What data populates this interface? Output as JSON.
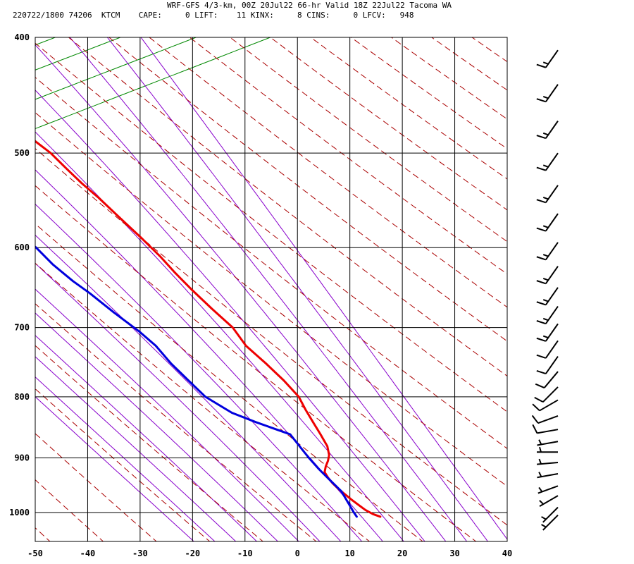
{
  "header": {
    "title": "WRF-GFS 4/3-km, 00Z 20Jul22 66-hr Valid 18Z 22Jul22 Tacoma WA",
    "stats": "220722/1800 74206  KTCM    CAPE:     0 LIFT:    11 KINX:     8 CINS:     0 LFCV:   948"
  },
  "colors": {
    "temperature": "#ee0000",
    "dewpoint": "#0000dd",
    "dry_adiabat": "#aa0000",
    "moist_adiabat": "#8800cc",
    "mixing_ratio": "#008800",
    "grid": "#000000"
  },
  "chart_data": {
    "type": "line",
    "subtype": "skew-T log-p sounding",
    "title": "WRF-GFS 4/3-km, 00Z 20Jul22 66-hr Valid 18Z 22Jul22 Tacoma WA",
    "xlabel": "",
    "ylabel": "",
    "x_ticks": [
      -50,
      -40,
      -30,
      -20,
      -10,
      0,
      10,
      20,
      30,
      40
    ],
    "x_tick_labels": [
      "-50",
      "-40",
      "-30",
      "-20",
      "-10",
      "0",
      "10",
      "20",
      "30",
      "40"
    ],
    "y_ticks": [
      400,
      500,
      600,
      700,
      800,
      900,
      1000
    ],
    "y_tick_labels": [
      "400",
      "500",
      "600",
      "700",
      "800",
      "900",
      "1000"
    ],
    "xlim": [
      -50,
      40
    ],
    "ylim": [
      1050,
      400
    ],
    "y_scale": "log (pressure, hPa)",
    "grid": true,
    "legend": "none",
    "series": [
      {
        "points": [
          [
            15.5,
            1008
          ],
          [
            14.3,
            1003
          ],
          [
            13.2,
            995
          ],
          [
            12.3,
            985
          ],
          [
            11.4,
            975
          ],
          [
            10.6,
            965
          ],
          [
            9.8,
            955
          ],
          [
            9.2,
            945
          ],
          [
            8.8,
            935
          ],
          [
            8.6,
            925
          ],
          [
            9.3,
            915
          ],
          [
            10.2,
            905
          ],
          [
            10.9,
            895
          ],
          [
            11.3,
            880
          ],
          [
            11.0,
            860
          ],
          [
            10.6,
            840
          ],
          [
            10.2,
            820
          ],
          [
            10.0,
            800
          ],
          [
            8.5,
            775
          ],
          [
            6.5,
            750
          ],
          [
            4.2,
            725
          ],
          [
            3.2,
            700
          ],
          [
            0.8,
            675
          ],
          [
            -1.5,
            650
          ],
          [
            -3.2,
            630
          ],
          [
            -4.7,
            610
          ],
          [
            -6.6,
            590
          ],
          [
            -9.3,
            565
          ],
          [
            -11.5,
            545
          ],
          [
            -13.5,
            530
          ],
          [
            -15.2,
            515
          ],
          [
            -16.9,
            500
          ],
          [
            -19.5,
            485
          ],
          [
            -22.0,
            470
          ],
          [
            -24.6,
            455
          ],
          [
            -26.9,
            442
          ],
          [
            -29.5,
            428
          ],
          [
            -31.6,
            417
          ]
        ]
      },
      {
        "points": [
          [
            11.0,
            1008
          ],
          [
            10.8,
            1000
          ],
          [
            10.5,
            980
          ],
          [
            10.2,
            960
          ],
          [
            9.0,
            940
          ],
          [
            7.8,
            920
          ],
          [
            6.8,
            900
          ],
          [
            6.0,
            880
          ],
          [
            5.2,
            860
          ],
          [
            -0.3,
            840
          ],
          [
            -4.1,
            825
          ],
          [
            -7.8,
            800
          ],
          [
            -9.7,
            775
          ],
          [
            -11.6,
            750
          ],
          [
            -13.0,
            725
          ],
          [
            -15.0,
            705
          ],
          [
            -18.2,
            680
          ],
          [
            -21.2,
            655
          ],
          [
            -23.4,
            640
          ],
          [
            -25.8,
            620
          ],
          [
            -27.6,
            600
          ],
          [
            -30.0,
            582
          ],
          [
            -33.0,
            562
          ],
          [
            -36.0,
            540
          ],
          [
            -38.0,
            530
          ],
          [
            -39.0,
            522
          ],
          [
            -40.4,
            510
          ],
          [
            -41.8,
            500
          ],
          [
            -43.2,
            488
          ],
          [
            -44.6,
            475
          ],
          [
            -44.8,
            460
          ],
          [
            -44.8,
            440
          ],
          [
            -44.6,
            425
          ],
          [
            -44.4,
            415
          ]
        ]
      }
    ],
    "wind_barbs": [
      {
        "p": 1005,
        "dir": 225,
        "kt": 5
      },
      {
        "p": 990,
        "dir": 225,
        "kt": 5
      },
      {
        "p": 968,
        "dir": 240,
        "kt": 5
      },
      {
        "p": 950,
        "dir": 250,
        "kt": 5
      },
      {
        "p": 928,
        "dir": 260,
        "kt": 5
      },
      {
        "p": 908,
        "dir": 265,
        "kt": 5
      },
      {
        "p": 890,
        "dir": 270,
        "kt": 5
      },
      {
        "p": 872,
        "dir": 260,
        "kt": 5
      },
      {
        "p": 852,
        "dir": 260,
        "kt": 10
      },
      {
        "p": 830,
        "dir": 250,
        "kt": 10
      },
      {
        "p": 805,
        "dir": 240,
        "kt": 10
      },
      {
        "p": 785,
        "dir": 225,
        "kt": 10
      },
      {
        "p": 762,
        "dir": 220,
        "kt": 10
      },
      {
        "p": 740,
        "dir": 215,
        "kt": 10
      },
      {
        "p": 718,
        "dir": 215,
        "kt": 10
      },
      {
        "p": 695,
        "dir": 215,
        "kt": 15
      },
      {
        "p": 672,
        "dir": 215,
        "kt": 15
      },
      {
        "p": 648,
        "dir": 215,
        "kt": 15
      },
      {
        "p": 622,
        "dir": 215,
        "kt": 15
      },
      {
        "p": 594,
        "dir": 215,
        "kt": 15
      },
      {
        "p": 562,
        "dir": 215,
        "kt": 15
      },
      {
        "p": 532,
        "dir": 215,
        "kt": 15
      },
      {
        "p": 500,
        "dir": 215,
        "kt": 15
      },
      {
        "p": 470,
        "dir": 215,
        "kt": 15
      },
      {
        "p": 438,
        "dir": 215,
        "kt": 15
      },
      {
        "p": 410,
        "dir": 215,
        "kt": 15
      }
    ]
  }
}
